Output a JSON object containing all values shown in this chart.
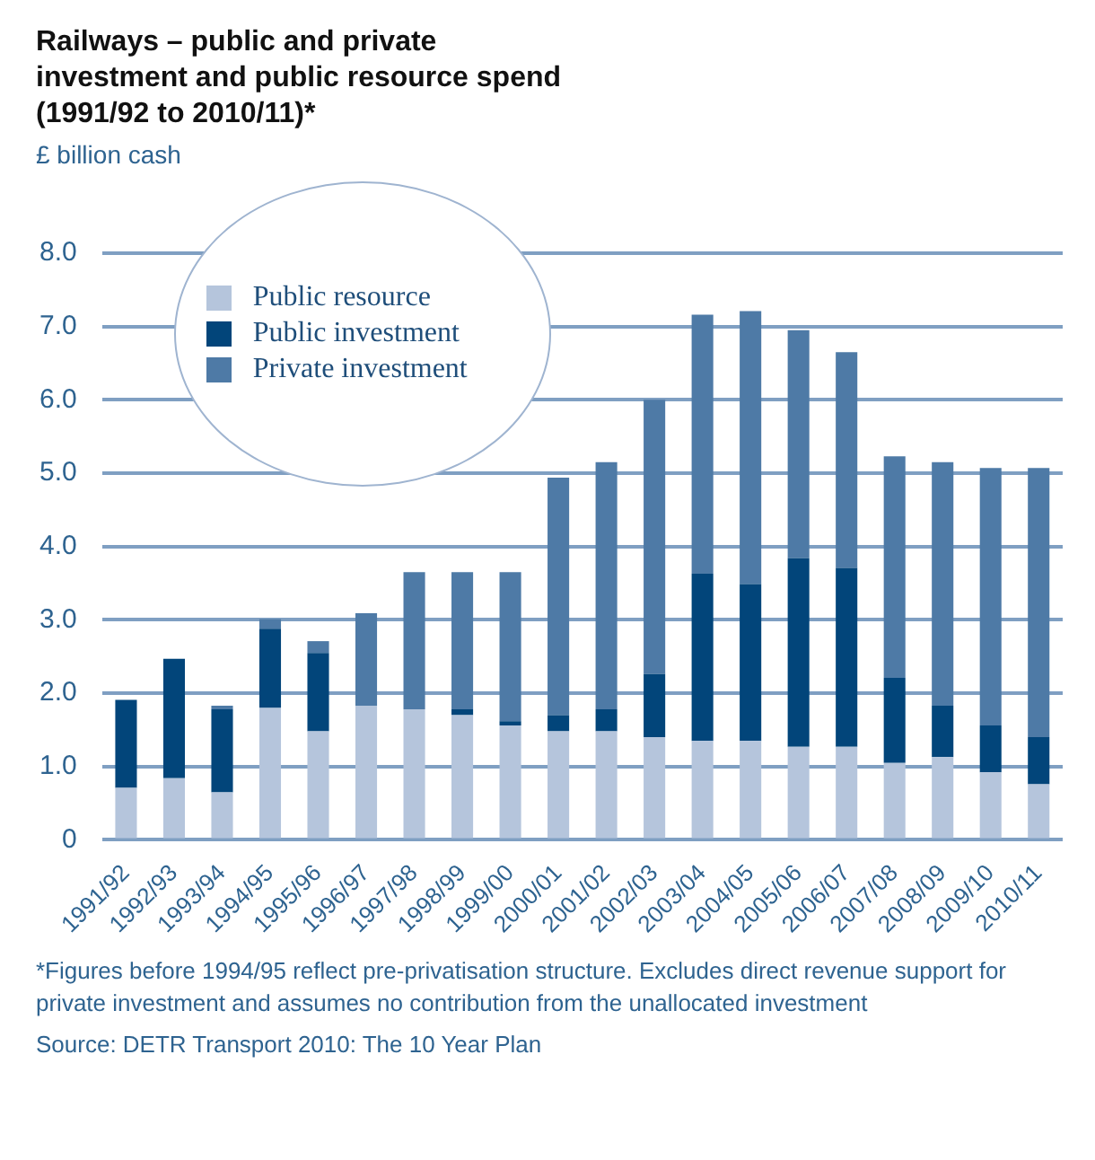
{
  "chart_data": {
    "type": "bar",
    "title": "Railways – public and private investment and public resource spend (1991/92 to 2010/11)*",
    "ylabel": "£ billion cash",
    "categories": [
      "1991/92",
      "1992/93",
      "1993/94",
      "1994/95",
      "1995/96",
      "1996/97",
      "1997/98",
      "1998/99",
      "1999/00",
      "2000/01",
      "2001/02",
      "2002/03",
      "2003/04",
      "2004/05",
      "2005/06",
      "2006/07",
      "2007/08",
      "2008/09",
      "2009/10",
      "2010/11"
    ],
    "stacked": true,
    "series": [
      {
        "name": "Public resource",
        "color": "#b5c5dc",
        "values": [
          0.71,
          0.84,
          0.65,
          1.8,
          1.48,
          1.83,
          1.78,
          1.7,
          1.56,
          1.48,
          1.48,
          1.4,
          1.35,
          1.35,
          1.27,
          1.27,
          1.05,
          1.13,
          0.92,
          0.76
        ]
      },
      {
        "name": "Public investment",
        "color": "#02457a",
        "values": [
          1.2,
          1.63,
          1.13,
          1.08,
          1.07,
          0,
          0,
          0.08,
          0.06,
          0.22,
          0.3,
          0.86,
          2.28,
          2.14,
          2.57,
          2.44,
          1.16,
          0.7,
          0.64,
          0.64
        ]
      },
      {
        "name": "Private investment",
        "color": "#4e7aa6",
        "values": [
          0,
          0,
          0.05,
          0.13,
          0.16,
          1.26,
          1.87,
          1.87,
          2.03,
          3.24,
          3.37,
          3.74,
          3.53,
          3.72,
          3.11,
          2.94,
          3.02,
          3.32,
          3.51,
          3.67
        ]
      }
    ],
    "ylim": [
      0,
      8
    ],
    "yticks": [
      0,
      {
        "value": 1,
        "label": "1.0"
      },
      {
        "value": 2,
        "label": "2.0"
      },
      {
        "value": 3,
        "label": "3.0"
      },
      {
        "value": 4,
        "label": "4.0"
      },
      {
        "value": 5,
        "label": "5.0"
      },
      {
        "value": 6,
        "label": "6.0"
      },
      {
        "value": 7,
        "label": "7.0"
      },
      {
        "value": 8,
        "label": "8.0"
      }
    ],
    "grid": "y",
    "legend": "top left",
    "annotations": [
      "*Figures before 1994/95 reflect pre-privatisation structure. Excludes direct revenue support for private investment and assumes no contribution from the unallocated investment",
      "Source: DETR Transport 2010: The 10 Year Plan"
    ]
  }
}
